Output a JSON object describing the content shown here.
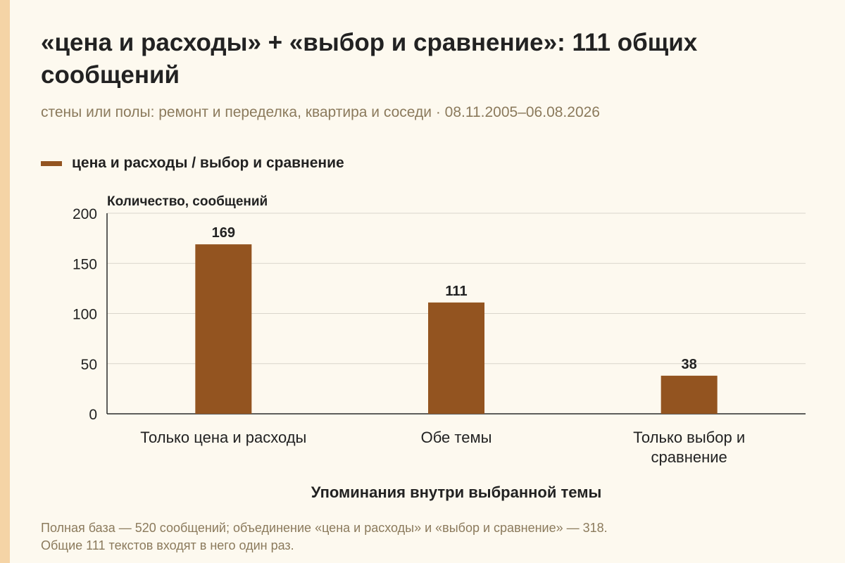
{
  "header": {
    "title": "«цена и расходы» + «выбор и сравнение»: 111 общих сообщений",
    "subtitle": "стены или полы: ремонт и переделка, квартира и соседи · 08.11.2005–06.08.2026"
  },
  "legend": {
    "label": "цена и расходы / выбор и сравнение",
    "color": "#935420"
  },
  "chart_data": {
    "type": "bar",
    "categories": [
      [
        "Только цена и расходы"
      ],
      [
        "Обе темы"
      ],
      [
        "Только выбор и",
        "сравнение"
      ]
    ],
    "series": [
      {
        "name": "цена и расходы / выбор и сравнение",
        "values": [
          169,
          111,
          38
        ],
        "color": "#935420"
      }
    ],
    "data_labels": [
      "169",
      "111",
      "38"
    ],
    "ylabel": "Количество, сообщений",
    "xlabel": "Упоминания внутри выбранной темы",
    "ylim": [
      0,
      200
    ],
    "yticks": [
      0,
      50,
      100,
      150,
      200
    ],
    "grid": true
  },
  "footnote": {
    "line1": "Полная база — 520 сообщений; объединение «цена и расходы» и «выбор и сравнение» — 318.",
    "line2": "Общие 111 текстов входят в него один раз."
  }
}
